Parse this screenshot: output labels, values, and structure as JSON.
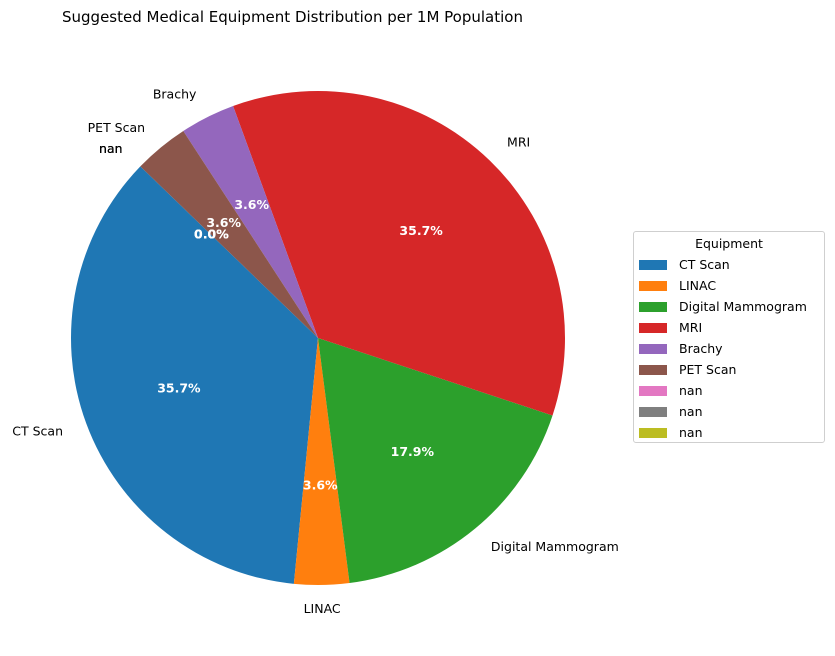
{
  "chart_data": {
    "type": "pie",
    "title": "Suggested Medical Equipment Distribution per 1M Population",
    "slices": [
      {
        "label": "CT Scan",
        "value": 35.7,
        "pct_label": "35.7%",
        "color": "#1f77b4"
      },
      {
        "label": "LINAC",
        "value": 3.6,
        "pct_label": "3.6%",
        "color": "#ff7f0e"
      },
      {
        "label": "Digital Mammogram",
        "value": 17.9,
        "pct_label": "17.9%",
        "color": "#2ca02c"
      },
      {
        "label": "MRI",
        "value": 35.7,
        "pct_label": "35.7%",
        "color": "#d62728"
      },
      {
        "label": "Brachy",
        "value": 3.6,
        "pct_label": "3.6%",
        "color": "#9467bd"
      },
      {
        "label": "PET Scan",
        "value": 3.6,
        "pct_label": "3.6%",
        "color": "#8c564b"
      },
      {
        "label": "nan",
        "value": 0.0,
        "pct_label": "0.0%",
        "color": "#e377c2"
      },
      {
        "label": "nan",
        "value": 0.0,
        "pct_label": "0.0%",
        "color": "#7f7f7f"
      },
      {
        "label": "nan",
        "value": 0.0,
        "pct_label": "0.0%",
        "color": "#bcbd22"
      }
    ],
    "legend": {
      "title": "Equipment",
      "placement": "right"
    }
  }
}
